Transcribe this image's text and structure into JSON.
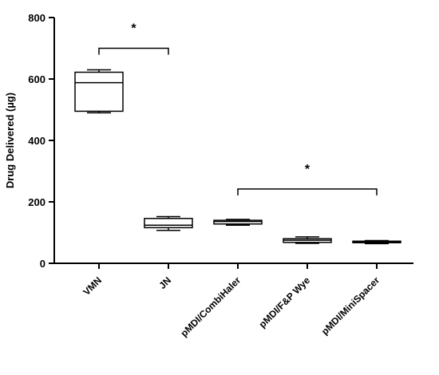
{
  "chart_data": {
    "type": "box",
    "title": "",
    "xlabel": "",
    "ylabel": "Drug Delivered (µg)",
    "ylim": [
      0,
      800
    ],
    "yticks": [
      0,
      200,
      400,
      600,
      800
    ],
    "grid": false,
    "legend": "none",
    "categories": [
      "VMN",
      "JN",
      "pMDI/CombiHaler",
      "pMDI/F&P Wye",
      "pMDI/MiniSpacer"
    ],
    "boxes": [
      {
        "category": "VMN",
        "min": 490,
        "q1": 495,
        "median": 588,
        "q3": 622,
        "max": 630
      },
      {
        "category": "JN",
        "min": 107,
        "q1": 116,
        "median": 124,
        "q3": 146,
        "max": 152
      },
      {
        "category": "pMDI/CombiHaler",
        "min": 124,
        "q1": 128,
        "median": 136,
        "q3": 140,
        "max": 143
      },
      {
        "category": "pMDI/F&P Wye",
        "min": 65,
        "q1": 68,
        "median": 75,
        "q3": 80,
        "max": 86
      },
      {
        "category": "pMDI/MiniSpacer",
        "min": 64,
        "q1": 67,
        "median": 70,
        "q3": 72,
        "max": 74
      }
    ],
    "annotations": [
      {
        "text": "*",
        "from": "VMN",
        "to": "JN",
        "y": 700
      },
      {
        "text": "*",
        "from": "pMDI/CombiHaler",
        "to": "pMDI/MiniSpacer",
        "y": 242
      }
    ],
    "colors": {
      "box_fill": "#ffffff",
      "line": "#000000"
    }
  }
}
